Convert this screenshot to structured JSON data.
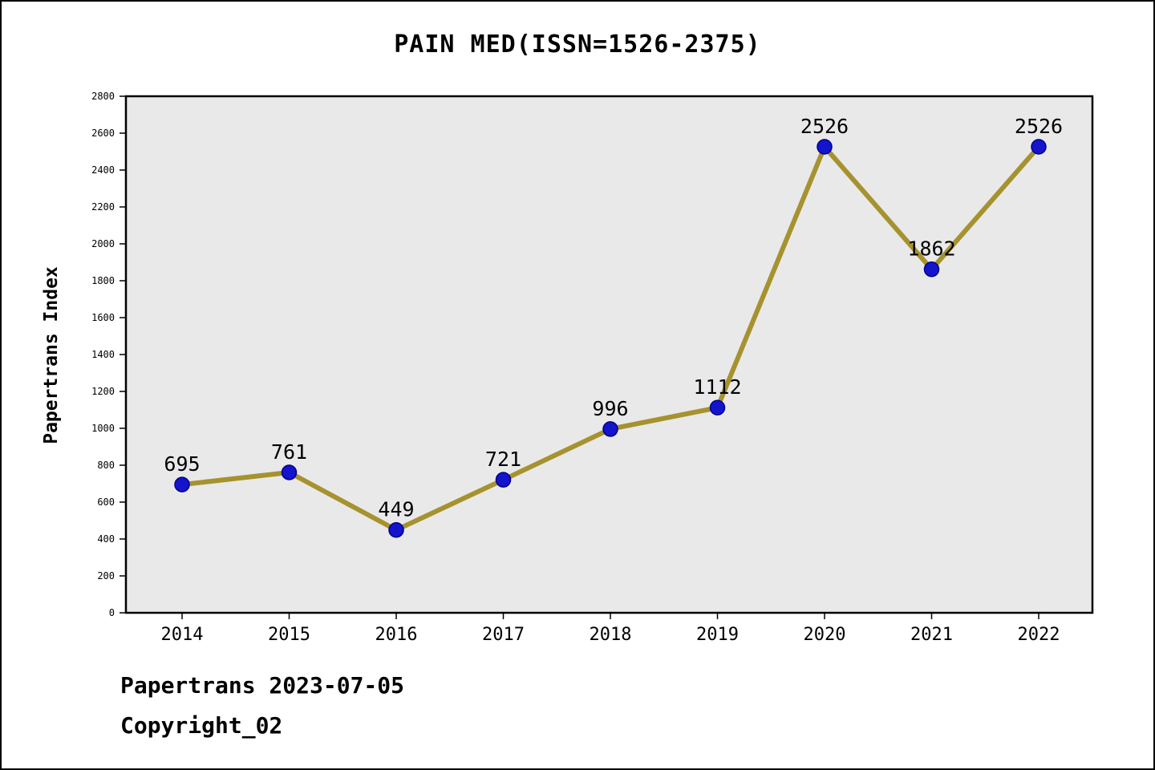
{
  "title": "PAIN MED(ISSN=1526-2375)",
  "y_axis_label": "Papertrans Index",
  "footer": {
    "line1": "Papertrans 2023-07-05",
    "line2": "Copyright_02"
  },
  "chart_data": {
    "type": "line",
    "title": "PAIN MED(ISSN=1526-2375)",
    "categories": [
      "2014",
      "2015",
      "2016",
      "2017",
      "2018",
      "2019",
      "2020",
      "2021",
      "2022"
    ],
    "values": [
      695,
      761,
      449,
      721,
      996,
      1112,
      2526,
      1862,
      2526
    ],
    "xlabel": "",
    "ylabel": "Papertrans Index",
    "ylim": [
      0,
      2800
    ],
    "ytick_step": 200,
    "grid": false,
    "legend": false,
    "line_color": "#a6922e",
    "marker_color": "#1414cc",
    "marker_edge_color": "#00008b",
    "plot_bg": "#e9e9e9",
    "axis_color": "#000000"
  }
}
